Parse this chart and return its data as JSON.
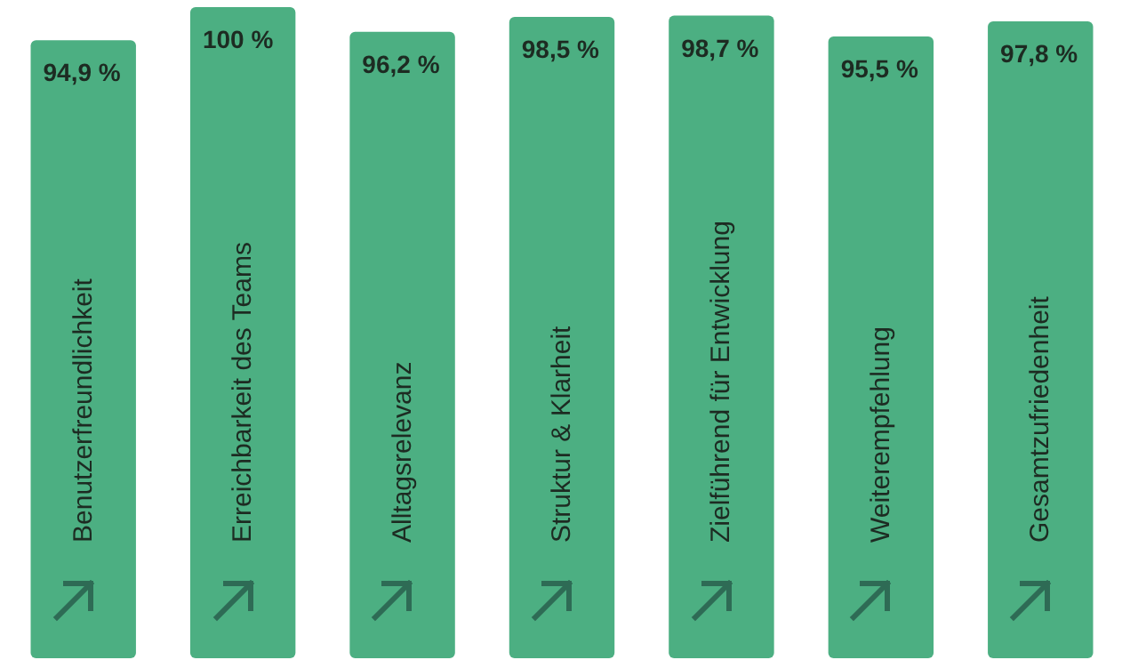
{
  "chart_data": {
    "type": "bar",
    "categories": [
      "Benutzerfreundlichkeit",
      "Erreichbarkeit des Teams",
      "Alltagsrelevanz",
      "Struktur & Klarheit",
      "Zielführend für Entwicklung",
      "Weiterempfehlung",
      "Gesamtzufriedenheit"
    ],
    "values": [
      94.9,
      100,
      96.2,
      98.5,
      98.7,
      95.5,
      97.8
    ],
    "value_labels": [
      "94,9 %",
      "100 %",
      "96,2 %",
      "98,5 %",
      "98,7 %",
      "95,5 %",
      "97,8 %"
    ],
    "color": "#4caf82"
  }
}
